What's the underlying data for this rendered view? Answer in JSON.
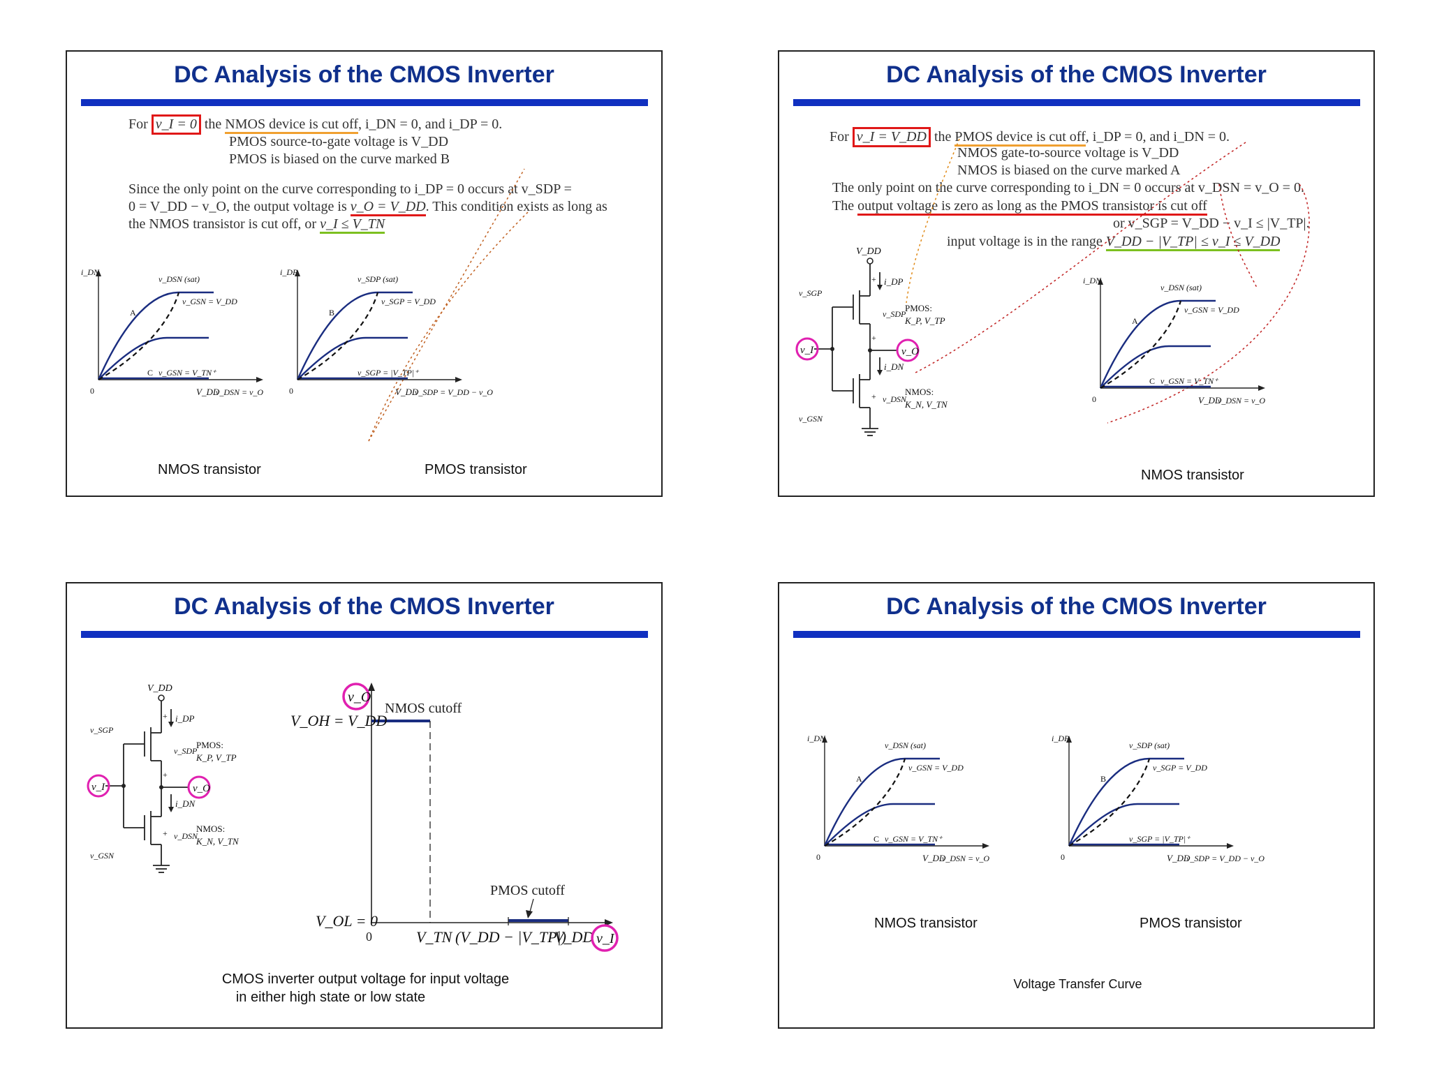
{
  "slides": [
    {
      "title": "DC Analysis of the CMOS Inverter",
      "lines": {
        "l1a": "For",
        "l1b": "v_I = 0",
        "l1c": "the",
        "l1d": "NMOS device is cut off",
        "l1e": ", i_DN = 0, and i_DP = 0.",
        "l2": "PMOS source-to-gate voltage is V_DD",
        "l3": "PMOS is biased on the curve marked B",
        "l4": "Since the only point on the curve corresponding to i_DP = 0 occurs at v_SDP =",
        "l5a": "0 = V_DD − v_O, the output voltage is",
        "l5b": "v_O = V_DD",
        "l5c": ". This condition exists as long as",
        "l6a": "the NMOS transistor is cut off, or",
        "l6b": "v_I ≤ V_TN"
      },
      "captions": {
        "left": "NMOS transistor",
        "right": "PMOS transistor"
      }
    },
    {
      "title": "DC Analysis of the CMOS Inverter",
      "lines": {
        "l1a": "For",
        "l1b": "v_I = V_DD",
        "l1c": "the",
        "l1d": "PMOS device is cut off",
        "l1e": ", i_DP = 0, and i_DN = 0.",
        "l2": "NMOS gate-to-source voltage is V_DD",
        "l3": "NMOS is biased on the curve marked A",
        "l4": "The only point on the curve corresponding to i_DN = 0 occurs at v_DSN = v_O = 0.",
        "l5a": "The",
        "l5b": "output voltage is zero as long as the PMOS transistor is cut off",
        "l6": "or v_SGP = V_DD − v_I ≤ |V_TP|.",
        "l7a": "input voltage is in the range",
        "l7b": "V_DD − |V_TP| ≤ v_I ≤ V_DD"
      },
      "captions": {
        "right": "NMOS transistor"
      }
    },
    {
      "title": "DC Analysis of the CMOS Inverter",
      "plot": {
        "voh": "V_OH = V_DD",
        "vol": "V_OL = 0",
        "nmos_cutoff": "NMOS cutoff",
        "pmos_cutoff": "PMOS cutoff",
        "x_zero": "0",
        "x_vtn": "V_TN",
        "x_mid": "(V_DD − |V_TP|)",
        "x_vdd": "V_DD",
        "x_axis": "v_I",
        "y_axis": "v_O"
      },
      "caption_l1": "CMOS inverter output voltage for input voltage",
      "caption_l2": "in either high state or low state"
    },
    {
      "title": "DC Analysis of the CMOS Inverter",
      "captions": {
        "left": "NMOS transistor",
        "right": "PMOS transistor"
      },
      "footer": "Voltage Transfer Curve"
    }
  ],
  "graph_labels": {
    "nmos": {
      "y_axis": "i_DN",
      "sat": "v_DSN (sat)",
      "top": "v_GSN = V_DD",
      "bottom": "v_GSN = V_TN⁺",
      "curve": "A",
      "bottom_mark": "C",
      "origin": "0",
      "x_vdd": "V_DD",
      "x_axis": "v_DSN = v_O"
    },
    "pmos": {
      "y_axis": "i_DP",
      "sat": "v_SDP (sat)",
      "top": "v_SGP = V_DD",
      "bottom": "v_SGP = |V_TP|⁺",
      "curve": "B",
      "origin": "0",
      "x_vdd": "V_DD",
      "x_axis": "v_SDP = V_DD − v_O"
    }
  },
  "circuit_labels": {
    "vdd": "V_DD",
    "idp": "i_DP",
    "vsgp": "v_SGP",
    "vsdp": "v_SDP",
    "pmos_name": "PMOS:",
    "pmos_params": "K_P, V_TP",
    "vo": "v_O",
    "vi": "v_I",
    "idn": "i_DN",
    "vdsn": "v_DSN",
    "vgsn": "v_GSN",
    "nmos_name": "NMOS:",
    "nmos_params": "K_N, V_TN"
  },
  "colors": {
    "title": "#10308c",
    "title_bar": "#1030c0",
    "curve": "#1a2d80",
    "highlight_red": "#e01818",
    "underline_orange": "#f0a030",
    "underline_green": "#7cc020",
    "circle_magenta": "#e020b0"
  }
}
